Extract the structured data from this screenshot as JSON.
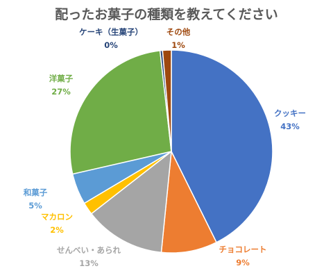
{
  "chart_data": {
    "type": "pie",
    "title": "配ったお菓子の種類を教えてください",
    "slices": [
      {
        "name": "クッキー",
        "value": 43,
        "pct_label": "43%",
        "color": "#4472C4"
      },
      {
        "name": "チョコレート",
        "value": 9,
        "pct_label": "9%",
        "color": "#ED7D31"
      },
      {
        "name": "せんべい・あられ",
        "value": 13,
        "pct_label": "13%",
        "color": "#A5A5A5"
      },
      {
        "name": "マカロン",
        "value": 2,
        "pct_label": "2%",
        "color": "#FFC000"
      },
      {
        "name": "和菓子",
        "value": 5,
        "pct_label": "5%",
        "color": "#5B9BD5"
      },
      {
        "name": "洋菓子",
        "value": 27,
        "pct_label": "27%",
        "color": "#70AD47"
      },
      {
        "name": "ケーキ（生菓子）",
        "value": 0.4,
        "pct_label": "0%",
        "color": "#264478"
      },
      {
        "name": "その他",
        "value": 1.4,
        "pct_label": "1%",
        "color": "#9E480E"
      }
    ]
  }
}
